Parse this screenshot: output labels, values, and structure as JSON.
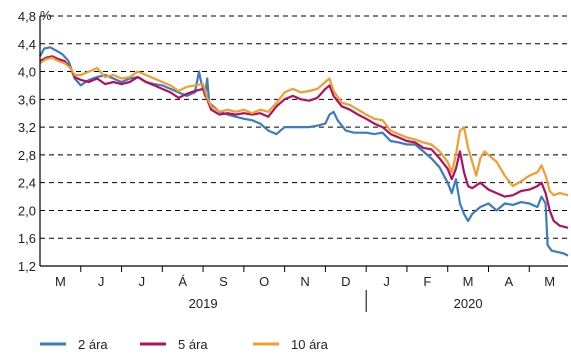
{
  "chart_data": {
    "type": "line",
    "ylabel": "%",
    "ylim": [
      1.2,
      4.8
    ],
    "yticks": [
      "1,2",
      "1,6",
      "2,0",
      "2,4",
      "2,8",
      "3,2",
      "3,6",
      "4,0",
      "4,4",
      "4,8"
    ],
    "ytick_values": [
      1.2,
      1.6,
      2.0,
      2.4,
      2.8,
      3.2,
      3.6,
      4.0,
      4.4,
      4.8
    ],
    "grid": "horizontal-dashed",
    "legend_position": "bottom",
    "x_months": [
      "M",
      "J",
      "J",
      "Á",
      "S",
      "O",
      "N",
      "D",
      "J",
      "F",
      "M",
      "A",
      "M"
    ],
    "x_years": [
      {
        "label": "2019",
        "start": 0,
        "end": 8
      },
      {
        "label": "2020",
        "start": 8,
        "end": 13
      }
    ],
    "x_range": [
      0,
      12.95
    ],
    "series": [
      {
        "name": "2 ára",
        "color": "#3b7bbf",
        "points": [
          [
            0,
            4.22
          ],
          [
            0.1,
            4.33
          ],
          [
            0.25,
            4.35
          ],
          [
            0.4,
            4.3
          ],
          [
            0.55,
            4.25
          ],
          [
            0.7,
            4.15
          ],
          [
            0.85,
            3.9
          ],
          [
            1,
            3.8
          ],
          [
            1.2,
            3.88
          ],
          [
            1.4,
            3.92
          ],
          [
            1.6,
            3.95
          ],
          [
            1.8,
            3.9
          ],
          [
            2,
            3.85
          ],
          [
            2.2,
            3.9
          ],
          [
            2.4,
            3.92
          ],
          [
            2.6,
            3.85
          ],
          [
            2.8,
            3.82
          ],
          [
            3,
            3.8
          ],
          [
            3.2,
            3.75
          ],
          [
            3.4,
            3.7
          ],
          [
            3.6,
            3.65
          ],
          [
            3.8,
            3.7
          ],
          [
            3.9,
            4.0
          ],
          [
            3.95,
            3.85
          ],
          [
            4.05,
            3.65
          ],
          [
            4.1,
            3.9
          ],
          [
            4.15,
            3.55
          ],
          [
            4.25,
            3.5
          ],
          [
            4.4,
            3.42
          ],
          [
            4.6,
            3.38
          ],
          [
            4.8,
            3.35
          ],
          [
            5,
            3.32
          ],
          [
            5.2,
            3.3
          ],
          [
            5.4,
            3.25
          ],
          [
            5.6,
            3.15
          ],
          [
            5.8,
            3.1
          ],
          [
            6,
            3.2
          ],
          [
            6.2,
            3.2
          ],
          [
            6.4,
            3.2
          ],
          [
            6.6,
            3.2
          ],
          [
            6.8,
            3.22
          ],
          [
            7,
            3.25
          ],
          [
            7.1,
            3.38
          ],
          [
            7.2,
            3.42
          ],
          [
            7.3,
            3.3
          ],
          [
            7.5,
            3.15
          ],
          [
            7.7,
            3.12
          ],
          [
            8,
            3.12
          ],
          [
            8.2,
            3.1
          ],
          [
            8.4,
            3.12
          ],
          [
            8.6,
            3.0
          ],
          [
            8.8,
            2.98
          ],
          [
            9,
            2.95
          ],
          [
            9.2,
            2.95
          ],
          [
            9.4,
            2.85
          ],
          [
            9.6,
            2.75
          ],
          [
            9.8,
            2.62
          ],
          [
            10,
            2.4
          ],
          [
            10.1,
            2.25
          ],
          [
            10.2,
            2.45
          ],
          [
            10.3,
            2.1
          ],
          [
            10.4,
            1.95
          ],
          [
            10.5,
            1.85
          ],
          [
            10.6,
            1.95
          ],
          [
            10.8,
            2.05
          ],
          [
            11,
            2.1
          ],
          [
            11.2,
            2.0
          ],
          [
            11.4,
            2.1
          ],
          [
            11.6,
            2.08
          ],
          [
            11.8,
            2.12
          ],
          [
            12,
            2.1
          ],
          [
            12.2,
            2.05
          ],
          [
            12.3,
            2.2
          ],
          [
            12.4,
            2.1
          ],
          [
            12.45,
            1.5
          ],
          [
            12.55,
            1.42
          ],
          [
            12.7,
            1.4
          ],
          [
            12.85,
            1.38
          ],
          [
            12.95,
            1.35
          ]
        ]
      },
      {
        "name": "5 ára",
        "color": "#b0105e",
        "points": [
          [
            0,
            4.15
          ],
          [
            0.15,
            4.2
          ],
          [
            0.3,
            4.22
          ],
          [
            0.45,
            4.18
          ],
          [
            0.6,
            4.15
          ],
          [
            0.75,
            4.05
          ],
          [
            0.85,
            3.92
          ],
          [
            1,
            3.88
          ],
          [
            1.2,
            3.85
          ],
          [
            1.4,
            3.9
          ],
          [
            1.6,
            3.82
          ],
          [
            1.8,
            3.85
          ],
          [
            2,
            3.82
          ],
          [
            2.2,
            3.85
          ],
          [
            2.4,
            3.92
          ],
          [
            2.6,
            3.85
          ],
          [
            2.8,
            3.8
          ],
          [
            3,
            3.75
          ],
          [
            3.2,
            3.7
          ],
          [
            3.4,
            3.62
          ],
          [
            3.6,
            3.68
          ],
          [
            3.8,
            3.72
          ],
          [
            4,
            3.75
          ],
          [
            4.1,
            3.6
          ],
          [
            4.2,
            3.45
          ],
          [
            4.4,
            3.38
          ],
          [
            4.6,
            3.4
          ],
          [
            4.8,
            3.38
          ],
          [
            5,
            3.4
          ],
          [
            5.2,
            3.38
          ],
          [
            5.4,
            3.4
          ],
          [
            5.6,
            3.35
          ],
          [
            5.8,
            3.5
          ],
          [
            6,
            3.6
          ],
          [
            6.2,
            3.65
          ],
          [
            6.4,
            3.6
          ],
          [
            6.6,
            3.58
          ],
          [
            6.8,
            3.62
          ],
          [
            7,
            3.75
          ],
          [
            7.1,
            3.8
          ],
          [
            7.2,
            3.65
          ],
          [
            7.4,
            3.5
          ],
          [
            7.6,
            3.45
          ],
          [
            7.8,
            3.38
          ],
          [
            8,
            3.32
          ],
          [
            8.2,
            3.25
          ],
          [
            8.4,
            3.2
          ],
          [
            8.6,
            3.1
          ],
          [
            8.8,
            3.05
          ],
          [
            9,
            3.0
          ],
          [
            9.2,
            2.98
          ],
          [
            9.4,
            2.9
          ],
          [
            9.6,
            2.88
          ],
          [
            9.8,
            2.75
          ],
          [
            10,
            2.6
          ],
          [
            10.1,
            2.45
          ],
          [
            10.2,
            2.6
          ],
          [
            10.3,
            2.85
          ],
          [
            10.4,
            2.55
          ],
          [
            10.5,
            2.35
          ],
          [
            10.6,
            2.32
          ],
          [
            10.8,
            2.4
          ],
          [
            11,
            2.3
          ],
          [
            11.2,
            2.25
          ],
          [
            11.4,
            2.2
          ],
          [
            11.6,
            2.22
          ],
          [
            11.8,
            2.28
          ],
          [
            12,
            2.3
          ],
          [
            12.2,
            2.35
          ],
          [
            12.3,
            2.4
          ],
          [
            12.4,
            2.25
          ],
          [
            12.5,
            2.0
          ],
          [
            12.6,
            1.85
          ],
          [
            12.75,
            1.78
          ],
          [
            12.95,
            1.75
          ]
        ]
      },
      {
        "name": "10 ára",
        "color": "#f29d2e",
        "points": [
          [
            0,
            4.12
          ],
          [
            0.15,
            4.18
          ],
          [
            0.3,
            4.2
          ],
          [
            0.45,
            4.15
          ],
          [
            0.6,
            4.12
          ],
          [
            0.75,
            4.05
          ],
          [
            0.85,
            3.95
          ],
          [
            1,
            3.95
          ],
          [
            1.2,
            4.0
          ],
          [
            1.4,
            4.05
          ],
          [
            1.6,
            3.92
          ],
          [
            1.8,
            3.95
          ],
          [
            2,
            3.9
          ],
          [
            2.2,
            3.92
          ],
          [
            2.4,
            4.0
          ],
          [
            2.6,
            3.95
          ],
          [
            2.8,
            3.9
          ],
          [
            3,
            3.85
          ],
          [
            3.2,
            3.8
          ],
          [
            3.4,
            3.72
          ],
          [
            3.6,
            3.78
          ],
          [
            3.8,
            3.8
          ],
          [
            4,
            3.82
          ],
          [
            4.1,
            3.62
          ],
          [
            4.2,
            3.5
          ],
          [
            4.4,
            3.42
          ],
          [
            4.6,
            3.45
          ],
          [
            4.8,
            3.42
          ],
          [
            5,
            3.45
          ],
          [
            5.2,
            3.4
          ],
          [
            5.4,
            3.45
          ],
          [
            5.6,
            3.42
          ],
          [
            5.8,
            3.55
          ],
          [
            6,
            3.7
          ],
          [
            6.2,
            3.75
          ],
          [
            6.4,
            3.7
          ],
          [
            6.6,
            3.72
          ],
          [
            6.8,
            3.75
          ],
          [
            7,
            3.85
          ],
          [
            7.1,
            3.9
          ],
          [
            7.2,
            3.72
          ],
          [
            7.4,
            3.55
          ],
          [
            7.6,
            3.52
          ],
          [
            7.8,
            3.45
          ],
          [
            8,
            3.38
          ],
          [
            8.2,
            3.32
          ],
          [
            8.4,
            3.3
          ],
          [
            8.6,
            3.15
          ],
          [
            8.8,
            3.1
          ],
          [
            9,
            3.05
          ],
          [
            9.2,
            3.02
          ],
          [
            9.4,
            2.98
          ],
          [
            9.6,
            2.95
          ],
          [
            9.8,
            2.85
          ],
          [
            10,
            2.7
          ],
          [
            10.1,
            2.55
          ],
          [
            10.2,
            2.8
          ],
          [
            10.3,
            3.15
          ],
          [
            10.4,
            3.2
          ],
          [
            10.5,
            2.9
          ],
          [
            10.6,
            2.7
          ],
          [
            10.7,
            2.5
          ],
          [
            10.8,
            2.75
          ],
          [
            10.9,
            2.85
          ],
          [
            11,
            2.8
          ],
          [
            11.2,
            2.7
          ],
          [
            11.4,
            2.5
          ],
          [
            11.6,
            2.35
          ],
          [
            11.8,
            2.42
          ],
          [
            12,
            2.5
          ],
          [
            12.2,
            2.55
          ],
          [
            12.3,
            2.65
          ],
          [
            12.4,
            2.5
          ],
          [
            12.5,
            2.28
          ],
          [
            12.6,
            2.22
          ],
          [
            12.75,
            2.25
          ],
          [
            12.95,
            2.22
          ]
        ]
      }
    ]
  }
}
